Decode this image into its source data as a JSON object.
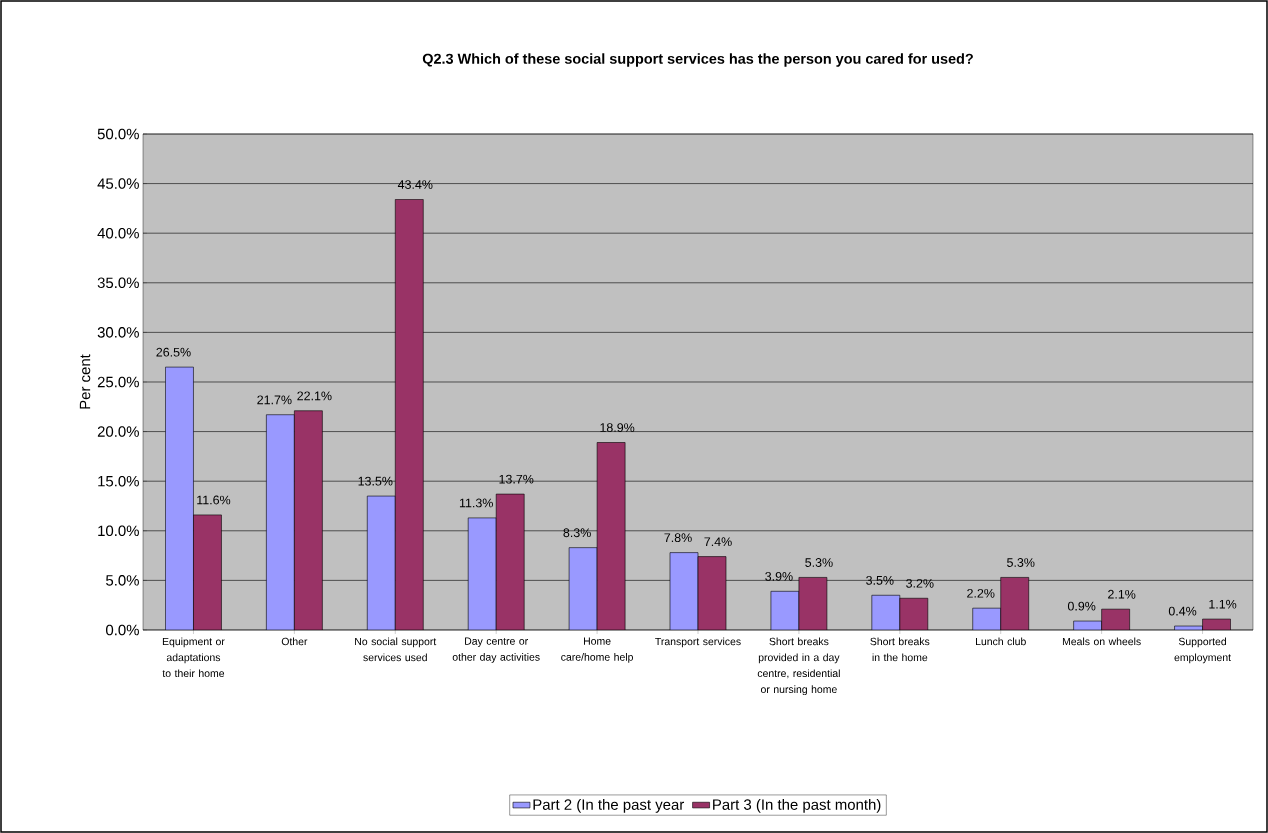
{
  "chart_data": {
    "type": "bar",
    "title": "Q2.3 Which of these social support services has the person you cared for used?",
    "ylabel": "Per cent",
    "categories": [
      "Equipment or adaptations to their home",
      "Other",
      "No social support services used",
      "Day centre or other day activities",
      "Home care/home help",
      "Transport services",
      "Short breaks provided in a day centre, residential or nursing home",
      "Short breaks in the home",
      "Lunch club",
      "Meals on wheels",
      "Supported employment"
    ],
    "series": [
      {
        "name": "Part 2 (In the past year",
        "color": "#9999ff",
        "values": [
          26.5,
          21.7,
          13.5,
          11.3,
          8.3,
          7.8,
          3.9,
          3.5,
          2.2,
          0.9,
          0.4
        ],
        "value_labels": [
          "26.5%",
          "21.7%",
          "13.5%",
          "11.3%",
          "8.3%",
          "7.8%",
          "3.9%",
          "3.5%",
          "2.2%",
          "0.9%",
          "0.4%"
        ]
      },
      {
        "name": "Part 3 (In the past month)",
        "color": "#993366",
        "values": [
          11.6,
          22.1,
          43.4,
          13.7,
          18.9,
          7.4,
          5.3,
          3.2,
          5.3,
          2.1,
          1.1
        ],
        "value_labels": [
          "11.6%",
          "22.1%",
          "43.4%",
          "13.7%",
          "18.9%",
          "7.4%",
          "5.3%",
          "3.2%",
          "5.3%",
          "2.1%",
          "1.1%"
        ]
      }
    ],
    "ylim": [
      0,
      50
    ],
    "yticks": [
      {
        "value": 0,
        "label": "0.0%"
      },
      {
        "value": 5,
        "label": "5.0%"
      },
      {
        "value": 10,
        "label": "10.0%"
      },
      {
        "value": 15,
        "label": "15.0%"
      },
      {
        "value": 20,
        "label": "20.0%"
      },
      {
        "value": 25,
        "label": "25.0%"
      },
      {
        "value": 30,
        "label": "30.0%"
      },
      {
        "value": 35,
        "label": "35.0%"
      },
      {
        "value": 40,
        "label": "40.0%"
      },
      {
        "value": 45,
        "label": "45.0%"
      },
      {
        "value": 50,
        "label": "50.0%"
      }
    ],
    "grid": "y",
    "legend": "bottom"
  }
}
